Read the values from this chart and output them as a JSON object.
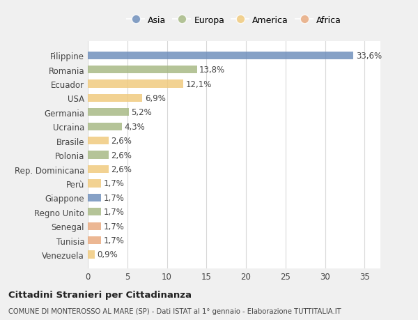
{
  "countries": [
    "Filippine",
    "Romania",
    "Ecuador",
    "USA",
    "Germania",
    "Ucraina",
    "Brasile",
    "Polonia",
    "Rep. Dominicana",
    "Perù",
    "Giappone",
    "Regno Unito",
    "Senegal",
    "Tunisia",
    "Venezuela"
  ],
  "values": [
    33.6,
    13.8,
    12.1,
    6.9,
    5.2,
    4.3,
    2.6,
    2.6,
    2.6,
    1.7,
    1.7,
    1.7,
    1.7,
    1.7,
    0.9
  ],
  "labels": [
    "33,6%",
    "13,8%",
    "12,1%",
    "6,9%",
    "5,2%",
    "4,3%",
    "2,6%",
    "2,6%",
    "2,6%",
    "1,7%",
    "1,7%",
    "1,7%",
    "1,7%",
    "1,7%",
    "0,9%"
  ],
  "continents": [
    "Asia",
    "Europa",
    "America",
    "America",
    "Europa",
    "Europa",
    "America",
    "Europa",
    "America",
    "America",
    "Asia",
    "Europa",
    "Africa",
    "Africa",
    "America"
  ],
  "colors": {
    "Asia": "#6b8cba",
    "Europa": "#a5b882",
    "America": "#f0c97a",
    "Africa": "#e8a87c"
  },
  "legend_order": [
    "Asia",
    "Europa",
    "America",
    "Africa"
  ],
  "xlim": [
    0,
    37
  ],
  "xticks": [
    0,
    5,
    10,
    15,
    20,
    25,
    30,
    35
  ],
  "title": "Cittadini Stranieri per Cittadinanza",
  "subtitle": "COMUNE DI MONTEROSSO AL MARE (SP) - Dati ISTAT al 1° gennaio - Elaborazione TUTTITALIA.IT",
  "bg_color": "#f0f0f0",
  "bar_bg_color": "#ffffff",
  "grid_color": "#d8d8d8",
  "label_fontsize": 8.5,
  "tick_fontsize": 8.5,
  "bar_height": 0.55,
  "alpha": 0.82
}
